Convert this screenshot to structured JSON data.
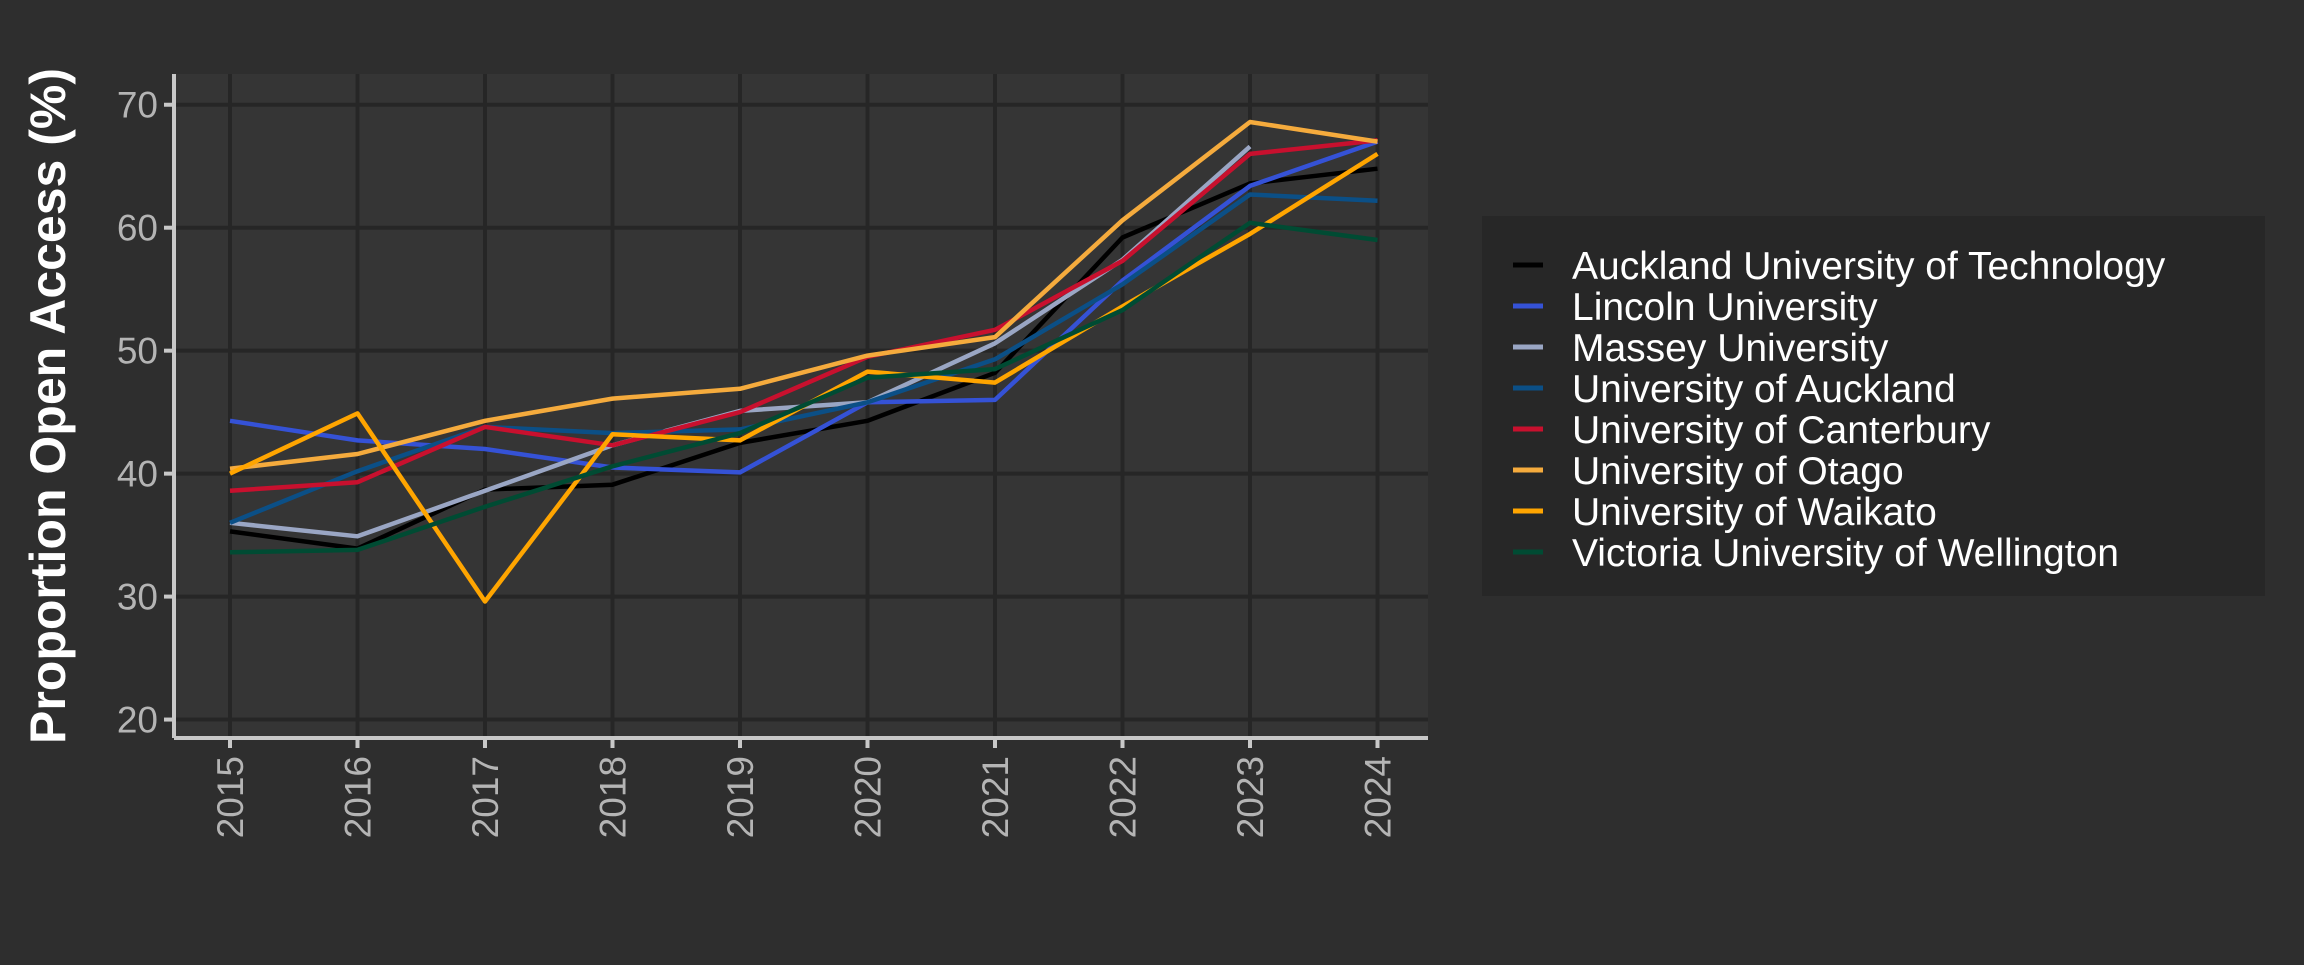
{
  "chart_data": {
    "type": "line",
    "title": "",
    "xlabel": "",
    "ylabel": "Proportion Open Access (%)",
    "ylim": [
      18.5,
      72.5
    ],
    "yticks": [
      20,
      30,
      40,
      50,
      60,
      70
    ],
    "x": [
      "2015",
      "2016",
      "2017",
      "2018",
      "2019",
      "2020",
      "2021",
      "2022",
      "2023",
      "2024"
    ],
    "grid": true,
    "legend_position": "right",
    "colors": {
      "background": "#2e2e2e",
      "panel": "#353535",
      "grid": "#262626",
      "axis": "#c8c8c8",
      "legend_background": "#272727"
    },
    "series": [
      {
        "name": "Auckland University of Technology",
        "color": "#000000",
        "values": [
          35.3,
          33.9,
          38.7,
          39.1,
          42.5,
          44.3,
          48.2,
          59.2,
          63.6,
          64.8
        ]
      },
      {
        "name": "Lincoln University",
        "color": "#3552d6",
        "values": [
          44.3,
          42.7,
          42.0,
          40.5,
          40.1,
          45.8,
          46.0,
          55.7,
          63.4,
          67.0
        ]
      },
      {
        "name": "Massey University",
        "color": "#9aa6c4",
        "values": [
          36.0,
          34.9,
          38.6,
          42.3,
          45.1,
          45.8,
          50.6,
          57.4,
          66.6,
          null
        ]
      },
      {
        "name": "University of Auckland",
        "color": "#0b4f86",
        "values": [
          36.0,
          40.2,
          43.8,
          43.3,
          43.6,
          45.8,
          49.3,
          55.4,
          62.7,
          62.2
        ]
      },
      {
        "name": "University of Canterbury",
        "color": "#c8102e",
        "values": [
          38.6,
          39.3,
          43.8,
          42.3,
          45.0,
          49.5,
          51.7,
          57.3,
          66.0,
          67.1
        ]
      },
      {
        "name": "University of Otago",
        "color": "#f5ab3d",
        "values": [
          40.4,
          41.6,
          44.3,
          46.1,
          46.9,
          49.6,
          51.1,
          60.6,
          68.6,
          67.0
        ]
      },
      {
        "name": "University of Waikato",
        "color": "#ffa500",
        "values": [
          40.0,
          44.9,
          29.6,
          43.2,
          42.7,
          48.3,
          47.4,
          53.6,
          59.5,
          66.0
        ]
      },
      {
        "name": "Victoria University of Wellington",
        "color": "#004b33",
        "values": [
          33.6,
          33.8,
          37.3,
          40.6,
          43.3,
          47.8,
          48.5,
          53.3,
          60.4,
          59.0
        ]
      }
    ]
  }
}
